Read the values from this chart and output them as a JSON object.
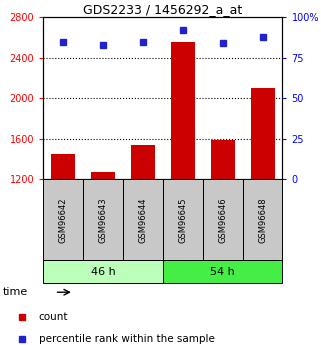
{
  "title": "GDS2233 / 1456292_a_at",
  "samples": [
    "GSM96642",
    "GSM96643",
    "GSM96644",
    "GSM96645",
    "GSM96646",
    "GSM96648"
  ],
  "counts": [
    1450,
    1270,
    1540,
    2560,
    1590,
    2100
  ],
  "percentiles": [
    85,
    83,
    85,
    92,
    84,
    88
  ],
  "ylim_left": [
    1200,
    2800
  ],
  "ylim_right": [
    0,
    100
  ],
  "yticks_left": [
    1200,
    1600,
    2000,
    2400,
    2800
  ],
  "yticks_right": [
    0,
    25,
    50,
    75,
    100
  ],
  "ytick_labels_right": [
    "0",
    "25",
    "50",
    "75",
    "100%"
  ],
  "grid_yticks": [
    1600,
    2000,
    2400
  ],
  "groups": [
    "46 h",
    "54 h"
  ],
  "bar_color": "#cc0000",
  "dot_color": "#2222cc",
  "bg_plot": "#ffffff",
  "bg_sample_box": "#c8c8c8",
  "bg_group_46": "#bbffbb",
  "bg_group_54": "#44ee44",
  "bar_width": 0.6,
  "legend_count_label": "count",
  "legend_pct_label": "percentile rank within the sample",
  "figsize": [
    3.21,
    3.45
  ],
  "dpi": 100
}
